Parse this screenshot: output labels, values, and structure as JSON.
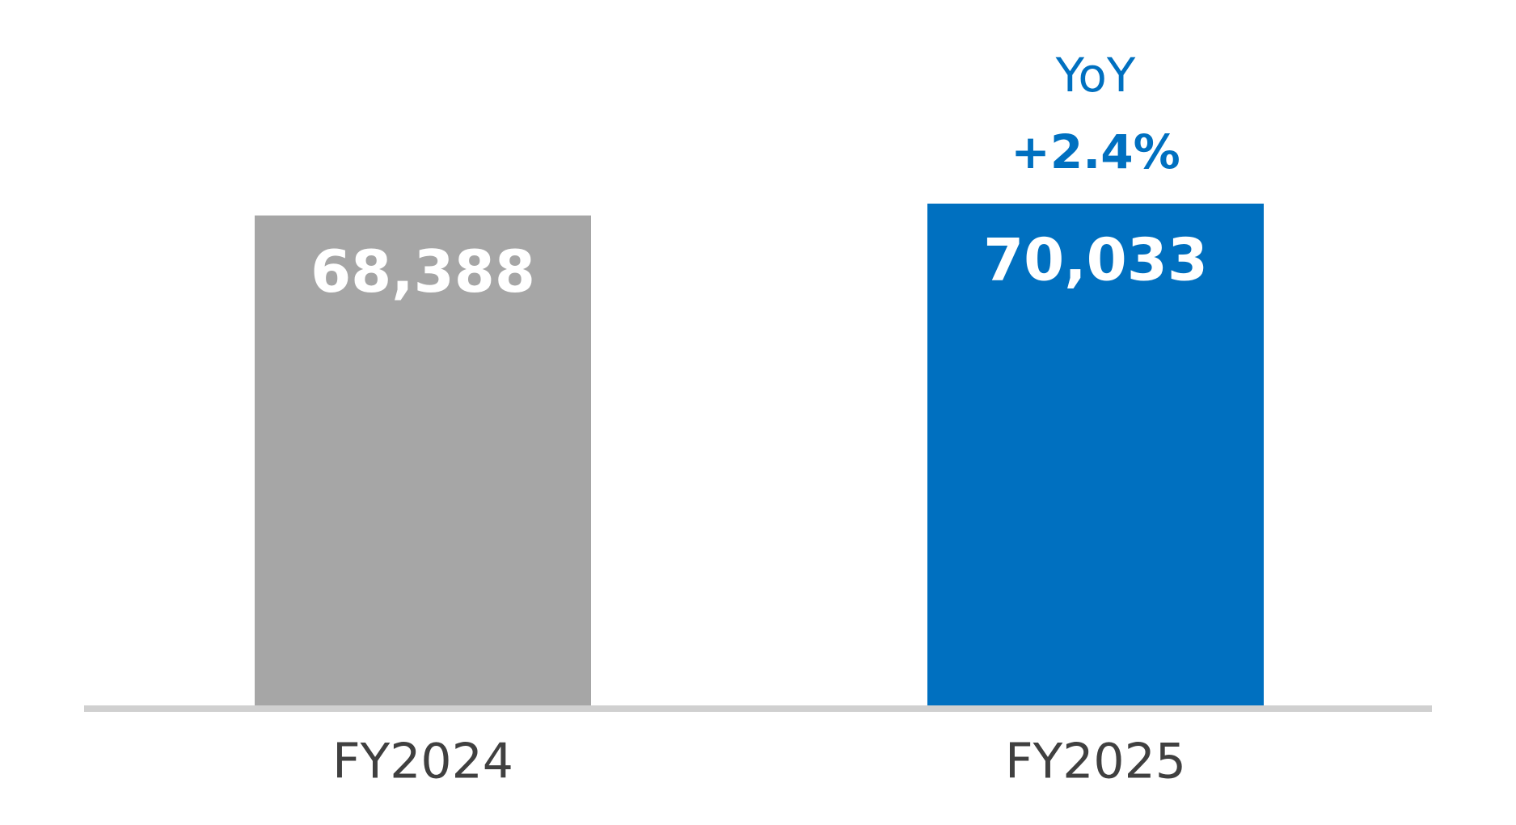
{
  "chart_data": {
    "type": "bar",
    "categories": [
      "FY2024",
      "FY2025"
    ],
    "values": [
      68388,
      70033
    ],
    "value_labels": [
      "68,388",
      "70,033"
    ],
    "colors": [
      "#a6a6a6",
      "#0070c0"
    ],
    "annotation": {
      "lines": [
        "YoY",
        "+2.4%"
      ],
      "color": "#0070c0"
    }
  }
}
